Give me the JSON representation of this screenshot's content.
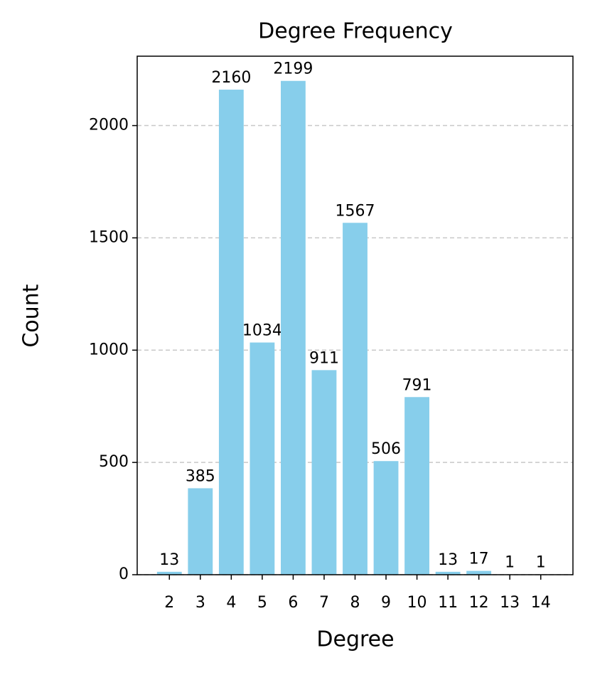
{
  "chart_data": {
    "type": "bar",
    "title": "Degree Frequency",
    "xlabel": "Degree",
    "ylabel": "Count",
    "x": [
      2,
      3,
      4,
      5,
      6,
      7,
      8,
      9,
      10,
      11,
      12,
      13,
      14
    ],
    "values": [
      13,
      385,
      2160,
      1034,
      2199,
      911,
      1567,
      506,
      791,
      13,
      17,
      1,
      1
    ],
    "color": "#87ceeb",
    "bar_width": 0.8,
    "xlim": [
      0.96,
      15.04
    ],
    "xticks": [
      2,
      3,
      4,
      5,
      6,
      7,
      8,
      9,
      10,
      11,
      12,
      13,
      14
    ],
    "ylim": [
      0,
      2309
    ],
    "yticks": [
      0,
      500,
      1000,
      1500,
      2000
    ],
    "grid": true
  }
}
